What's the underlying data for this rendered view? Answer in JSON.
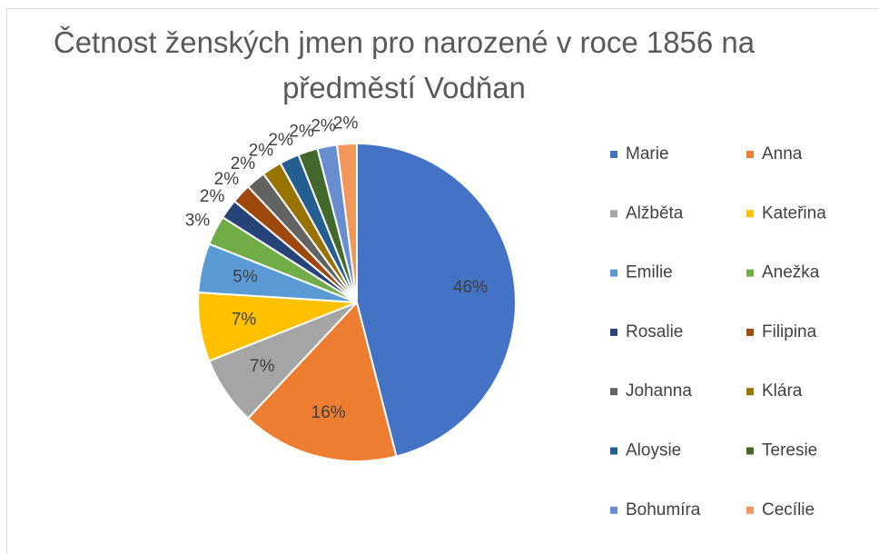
{
  "chart_data": {
    "type": "pie",
    "title": "Četnost ženských jmen pro narozené v roce 1856 na předměstí Vodňan",
    "categories": [
      "Marie",
      "Anna",
      "Alžběta",
      "Kateřina",
      "Emilie",
      "Anežka",
      "Rosalie",
      "Filipina",
      "Johanna",
      "Klára",
      "Aloysie",
      "Teresie",
      "Bohumíra",
      "Cecílie"
    ],
    "values": [
      46,
      16,
      7,
      7,
      5,
      3,
      2,
      2,
      2,
      2,
      2,
      2,
      2,
      2
    ],
    "value_labels": [
      "46%",
      "16%",
      "7%",
      "7%",
      "5%",
      "3%",
      "2%",
      "2%",
      "2%",
      "2%",
      "2%",
      "2%",
      "2%",
      "2%"
    ],
    "colors": [
      "#4472c4",
      "#ed7d31",
      "#a5a5a5",
      "#ffc000",
      "#5b9bd5",
      "#70ad47",
      "#264478",
      "#9e480e",
      "#636363",
      "#997300",
      "#255e91",
      "#43682b",
      "#698ed0",
      "#f1975a"
    ],
    "legend": "right"
  }
}
